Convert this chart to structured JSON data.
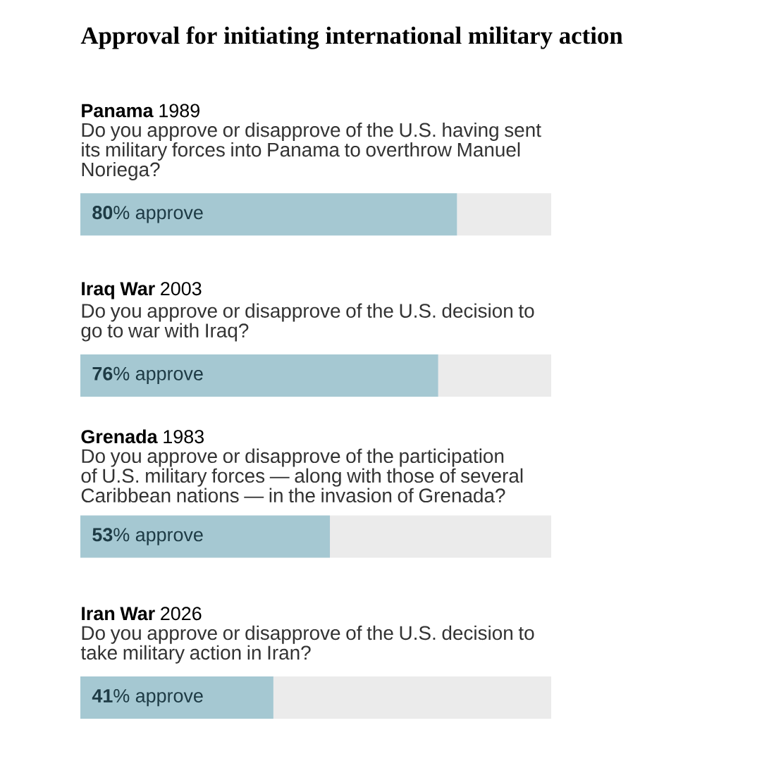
{
  "chart_data": {
    "type": "bar",
    "orientation": "horizontal",
    "title": "Approval for initiating international military action",
    "categories": [
      "**Panama** 1989",
      "**Iraq War** 2003",
      "**Grenada** 1983",
      "**Iran War** 2026"
    ],
    "annotations": [
      "Do you approve or disapprove of the U.S. having sent its military forces into Panama to overthrow Manuel Noriega?",
      "Do you approve or disapprove of the U.S. decision to go to war with Iraq?",
      "Do you approve or disapprove of the participation of U.S. military forces — along with those of several Caribbean nations — in the invasion of Grenada?",
      "Do you approve or disapprove of the U.S. decision to take military action in Iran?"
    ],
    "stacked": true,
    "series": [
      {
        "color": "#a5c8d2",
        "values": [
          80,
          76,
          53,
          41
        ],
        "value_labels": [
          "**80**% approve",
          "**76**% approve",
          "**53**% approve",
          "**41**% approve"
        ]
      },
      {
        "color": "#ebebeb",
        "values": [
          20,
          24,
          47,
          59
        ]
      }
    ],
    "xlim": [
      0,
      100
    ],
    "tick_labels": false
  }
}
